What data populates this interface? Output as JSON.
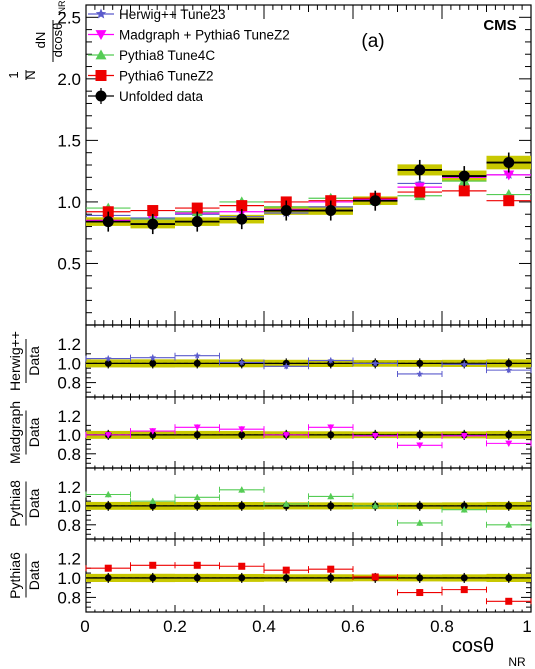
{
  "chart_data": {
    "type": "scatter",
    "x_bins": [
      [
        0.0,
        0.1
      ],
      [
        0.1,
        0.2
      ],
      [
        0.2,
        0.3
      ],
      [
        0.3,
        0.4
      ],
      [
        0.4,
        0.5
      ],
      [
        0.5,
        0.6
      ],
      [
        0.6,
        0.7
      ],
      [
        0.7,
        0.8
      ],
      [
        0.8,
        0.9
      ],
      [
        0.9,
        1.0
      ]
    ],
    "x_centers": [
      0.05,
      0.15,
      0.25,
      0.35,
      0.45,
      0.55,
      0.65,
      0.75,
      0.85,
      0.95
    ],
    "xlim": [
      0,
      1
    ],
    "x_ticks": [
      "0",
      "0.2",
      "0.4",
      "0.6",
      "0.8",
      "1"
    ],
    "x_label_main": "cosθ",
    "x_label_sub": "NR",
    "main_panel": {
      "ylim": [
        0.0,
        2.6
      ],
      "y_ticks": [
        "0.5",
        "1.0",
        "1.5",
        "2.0",
        "2.5"
      ],
      "y_ticks_values": [
        0.5,
        1.0,
        1.5,
        2.0,
        2.5
      ],
      "ylabel_prefix": "1",
      "ylabel_n": "N",
      "ylabel_numerator": "dN",
      "ylabel_denominator": "dcosθ",
      "ylabel_sub": "NR",
      "panel_label": "(a)",
      "experiment_label": "CMS",
      "series": [
        {
          "name": "Herwig++ Tune23",
          "color": "#5b5bcc",
          "marker": "star",
          "values": [
            0.89,
            0.87,
            0.9,
            0.88,
            0.91,
            0.96,
            1.02,
            1.15,
            1.2,
            1.22
          ]
        },
        {
          "name": "Madgraph + Pythia6 TuneZ2",
          "color": "#ff00ff",
          "marker": "triangle-down",
          "values": [
            0.85,
            0.86,
            0.91,
            0.92,
            0.94,
            1.0,
            1.02,
            1.12,
            1.2,
            1.22
          ]
        },
        {
          "name": "Pythia8 Tune4C",
          "color": "#55cc55",
          "marker": "triangle-up",
          "values": [
            0.95,
            0.86,
            0.92,
            1.0,
            0.96,
            1.03,
            1.01,
            1.05,
            1.17,
            1.06
          ]
        },
        {
          "name": "Pythia6 TuneZ2",
          "color": "#ee0000",
          "marker": "square",
          "values": [
            0.92,
            0.93,
            0.95,
            0.97,
            1.0,
            1.01,
            1.03,
            1.08,
            1.09,
            1.01
          ]
        },
        {
          "name": "Unfolded data",
          "color": "#000000",
          "marker": "circle",
          "values": [
            0.84,
            0.82,
            0.84,
            0.86,
            0.93,
            0.93,
            1.01,
            1.26,
            1.21,
            1.32
          ],
          "band_half_width": [
            0.035,
            0.035,
            0.035,
            0.035,
            0.035,
            0.035,
            0.035,
            0.045,
            0.045,
            0.055
          ]
        }
      ]
    },
    "ratio_panels": [
      {
        "label_top": "Herwig++",
        "label_bottom": "Data",
        "color": "#5b5bcc",
        "marker": "star",
        "ylim": [
          0.65,
          1.4
        ],
        "y_ticks": [
          "0.8",
          "1.0",
          "1.2"
        ],
        "y_ticks_values": [
          0.8,
          1.0,
          1.2
        ],
        "values": [
          1.05,
          1.06,
          1.08,
          1.01,
          0.97,
          1.03,
          1.0,
          0.89,
          0.99,
          0.93
        ]
      },
      {
        "label_top": "Madgraph",
        "label_bottom": "Data",
        "color": "#ff00ff",
        "marker": "triangle-down",
        "ylim": [
          0.65,
          1.4
        ],
        "y_ticks": [
          "0.8",
          "1.0",
          "1.2"
        ],
        "y_ticks_values": [
          0.8,
          1.0,
          1.2
        ],
        "values": [
          1.0,
          1.04,
          1.08,
          1.06,
          1.0,
          1.08,
          0.99,
          0.89,
          0.99,
          0.91
        ]
      },
      {
        "label_top": "Pythia8",
        "label_bottom": "Data",
        "color": "#55cc55",
        "marker": "triangle-up",
        "ylim": [
          0.65,
          1.4
        ],
        "y_ticks": [
          "0.8",
          "1.0",
          "1.2"
        ],
        "y_ticks_values": [
          0.8,
          1.0,
          1.2
        ],
        "values": [
          1.12,
          1.05,
          1.09,
          1.17,
          1.02,
          1.1,
          1.0,
          0.82,
          0.96,
          0.8
        ]
      },
      {
        "label_top": "Pythia6",
        "label_bottom": "Data",
        "color": "#ee0000",
        "marker": "square",
        "ylim": [
          0.65,
          1.4
        ],
        "y_ticks": [
          "0.8",
          "1.0",
          "1.2"
        ],
        "y_ticks_values": [
          0.8,
          1.0,
          1.2
        ],
        "values": [
          1.1,
          1.13,
          1.13,
          1.12,
          1.08,
          1.09,
          1.01,
          0.85,
          0.88,
          0.76
        ]
      }
    ],
    "band_color": "#c8c800",
    "legend_placement": "top-left"
  }
}
